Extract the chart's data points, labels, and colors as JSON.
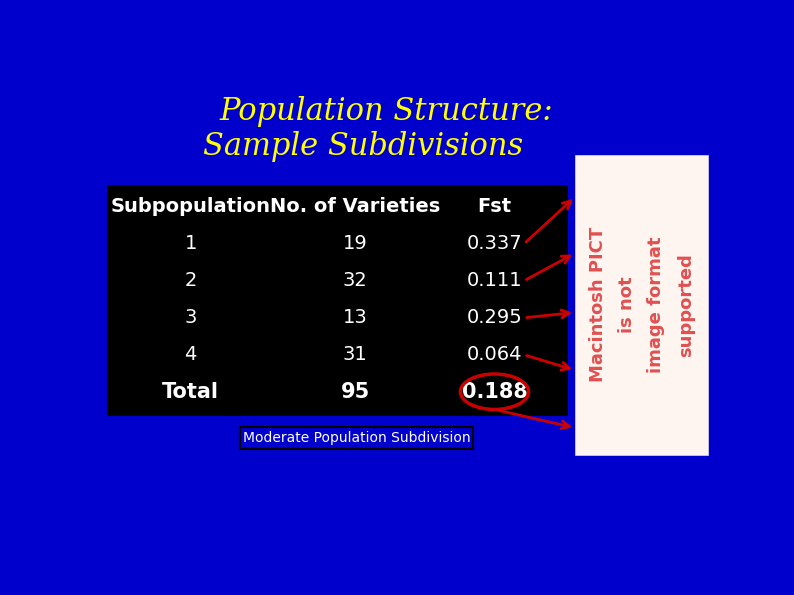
{
  "title_line1": "Population Structure:",
  "title_line2": "Sample Subdivisions",
  "title_color": "#FFFF00",
  "bg_color": "#0000CC",
  "table_bg_color": "#000000",
  "table_text_color": "#FFFFFF",
  "header_row": [
    "Subpopulation",
    "No. of Varieties",
    "Fst"
  ],
  "data_rows": [
    [
      "1",
      "19",
      "0.337"
    ],
    [
      "2",
      "32",
      "0.111"
    ],
    [
      "3",
      "13",
      "0.295"
    ],
    [
      "4",
      "31",
      "0.064"
    ],
    [
      "Total",
      "95",
      "0.188"
    ]
  ],
  "footnote": "Moderate Population Subdivision",
  "footnote_bg": "#0000CC",
  "footnote_border": "#222222",
  "arrow_color": "#CC0000",
  "ellipse_color": "#CC0000",
  "pict_bg": "#FFF5F0",
  "pict_text_color": "#E05050",
  "pict_line1": "Macintosh PICT",
  "pict_line2": "is not",
  "pict_line3": "image format",
  "pict_line4": "supported"
}
